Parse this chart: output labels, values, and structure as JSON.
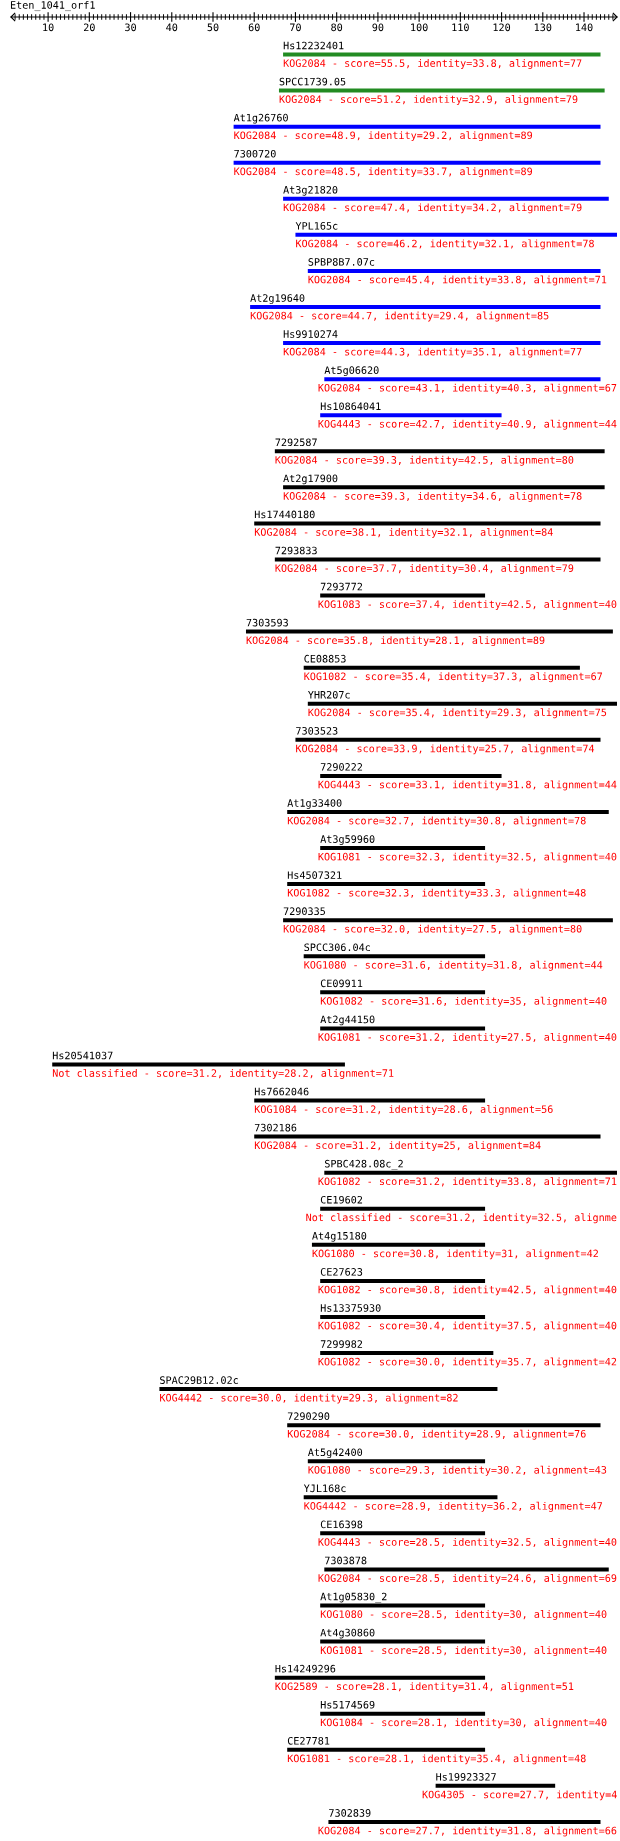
{
  "chart_data": {
    "type": "bar",
    "orientation": "horizontal",
    "title": "Eten_1041_orf1",
    "categories": [
      "Hs12232401",
      "SPCC1739.05",
      "At1g26760",
      "7300720",
      "At3g21820",
      "YPL165c",
      "SPBP8B7.07c",
      "At2g19640",
      "Hs9910274",
      "At5g06620",
      "Hs10864041",
      "7292587",
      "At2g17900",
      "Hs17440180",
      "7293833",
      "7293772",
      "7303593",
      "CE08853",
      "YHR207c",
      "7303523",
      "7290222",
      "At1g33400",
      "At3g59960",
      "Hs4507321",
      "7290335",
      "SPCC306.04c",
      "CE09911",
      "At2g44150",
      "Hs20541037",
      "Hs7662046",
      "7302186",
      "SPBC428.08c_2",
      "CE19602",
      "At4g15180",
      "CE27623",
      "Hs13375930",
      "7299982",
      "SPAC29B12.02c",
      "7290290",
      "At5g42400",
      "YJL168c",
      "CE16398",
      "7303878",
      "At1g05830_2",
      "At4g30860",
      "Hs14249296",
      "Hs5174569",
      "CE27781",
      "Hs19923327",
      "7302839"
    ],
    "base": [
      67,
      66,
      55,
      55,
      67,
      70,
      73,
      59,
      67,
      77,
      76,
      65,
      67,
      60,
      65,
      76,
      58,
      72,
      73,
      70,
      76,
      68,
      76,
      68,
      67,
      72,
      76,
      76,
      11,
      60,
      60,
      77,
      76,
      74,
      76,
      76,
      76,
      37,
      68,
      73,
      72,
      76,
      77,
      76,
      76,
      65,
      76,
      68,
      104,
      78
    ],
    "values": [
      77,
      79,
      89,
      89,
      79,
      78,
      71,
      85,
      77,
      67,
      44,
      80,
      78,
      84,
      79,
      40,
      89,
      67,
      75,
      74,
      44,
      78,
      40,
      48,
      80,
      44,
      40,
      40,
      71,
      56,
      84,
      71,
      40,
      42,
      40,
      40,
      42,
      82,
      76,
      43,
      47,
      40,
      69,
      40,
      40,
      51,
      40,
      48,
      29,
      66
    ],
    "colors": [
      "#228b22",
      "#228b22",
      "#0000ff",
      "#0000ff",
      "#0000ff",
      "#0000ff",
      "#0000ff",
      "#0000ff",
      "#0000ff",
      "#0000ff",
      "#0000ff",
      "#000000",
      "#000000",
      "#000000",
      "#000000",
      "#000000",
      "#000000",
      "#000000",
      "#000000",
      "#000000",
      "#000000",
      "#000000",
      "#000000",
      "#000000",
      "#000000",
      "#000000",
      "#000000",
      "#000000",
      "#000000",
      "#000000",
      "#000000",
      "#000000",
      "#000000",
      "#000000",
      "#000000",
      "#000000",
      "#000000",
      "#000000",
      "#000000",
      "#000000",
      "#000000",
      "#000000",
      "#000000",
      "#000000",
      "#000000",
      "#000000",
      "#000000",
      "#000000",
      "#000000",
      "#000000"
    ],
    "xlim": [
      1,
      148
    ],
    "xticks": [
      {
        "value": 2,
        "label": null
      },
      {
        "value": 3,
        "label": null
      },
      {
        "value": 4,
        "label": null
      },
      {
        "value": 5,
        "label": null
      },
      {
        "value": 6,
        "label": null
      },
      {
        "value": 7,
        "label": null
      },
      {
        "value": 8,
        "label": null
      },
      {
        "value": 9,
        "label": null
      },
      10,
      {
        "value": 11,
        "label": null
      },
      {
        "value": 12,
        "label": null
      },
      {
        "value": 13,
        "label": null
      },
      {
        "value": 14,
        "label": null
      },
      {
        "value": 15,
        "label": null
      },
      {
        "value": 16,
        "label": null
      },
      {
        "value": 17,
        "label": null
      },
      {
        "value": 18,
        "label": null
      },
      {
        "value": 19,
        "label": null
      },
      20,
      {
        "value": 21,
        "label": null
      },
      {
        "value": 22,
        "label": null
      },
      {
        "value": 23,
        "label": null
      },
      {
        "value": 24,
        "label": null
      },
      {
        "value": 25,
        "label": null
      },
      {
        "value": 26,
        "label": null
      },
      {
        "value": 27,
        "label": null
      },
      {
        "value": 28,
        "label": null
      },
      {
        "value": 29,
        "label": null
      },
      30,
      {
        "value": 31,
        "label": null
      },
      {
        "value": 32,
        "label": null
      },
      {
        "value": 33,
        "label": null
      },
      {
        "value": 34,
        "label": null
      },
      {
        "value": 35,
        "label": null
      },
      {
        "value": 36,
        "label": null
      },
      {
        "value": 37,
        "label": null
      },
      {
        "value": 38,
        "label": null
      },
      {
        "value": 39,
        "label": null
      },
      40,
      {
        "value": 41,
        "label": null
      },
      {
        "value": 42,
        "label": null
      },
      {
        "value": 43,
        "label": null
      },
      {
        "value": 44,
        "label": null
      },
      {
        "value": 45,
        "label": null
      },
      {
        "value": 46,
        "label": null
      },
      {
        "value": 47,
        "label": null
      },
      {
        "value": 48,
        "label": null
      },
      {
        "value": 49,
        "label": null
      },
      50,
      {
        "value": 51,
        "label": null
      },
      {
        "value": 52,
        "label": null
      },
      {
        "value": 53,
        "label": null
      },
      {
        "value": 54,
        "label": null
      },
      {
        "value": 55,
        "label": null
      },
      {
        "value": 56,
        "label": null
      },
      {
        "value": 57,
        "label": null
      },
      {
        "value": 58,
        "label": null
      },
      {
        "value": 59,
        "label": null
      },
      60,
      {
        "value": 61,
        "label": null
      },
      {
        "value": 62,
        "label": null
      },
      {
        "value": 63,
        "label": null
      },
      {
        "value": 64,
        "label": null
      },
      {
        "value": 65,
        "label": null
      },
      {
        "value": 66,
        "label": null
      },
      {
        "value": 67,
        "label": null
      },
      {
        "value": 68,
        "label": null
      },
      {
        "value": 69,
        "label": null
      },
      70,
      {
        "value": 71,
        "label": null
      },
      {
        "value": 72,
        "label": null
      },
      {
        "value": 73,
        "label": null
      },
      {
        "value": 74,
        "label": null
      },
      {
        "value": 75,
        "label": null
      },
      {
        "value": 76,
        "label": null
      },
      {
        "value": 77,
        "label": null
      },
      {
        "value": 78,
        "label": null
      },
      {
        "value": 79,
        "label": null
      },
      80,
      {
        "value": 81,
        "label": null
      },
      {
        "value": 82,
        "label": null
      },
      {
        "value": 83,
        "label": null
      },
      {
        "value": 84,
        "label": null
      },
      {
        "value": 85,
        "label": null
      },
      {
        "value": 86,
        "label": null
      },
      {
        "value": 87,
        "label": null
      },
      {
        "value": 88,
        "label": null
      },
      {
        "value": 89,
        "label": null
      },
      90,
      {
        "value": 91,
        "label": null
      },
      {
        "value": 92,
        "label": null
      },
      {
        "value": 93,
        "label": null
      },
      {
        "value": 94,
        "label": null
      },
      {
        "value": 95,
        "label": null
      },
      {
        "value": 96,
        "label": null
      },
      {
        "value": 97,
        "label": null
      },
      {
        "value": 98,
        "label": null
      },
      {
        "value": 99,
        "label": null
      },
      100,
      {
        "value": 101,
        "label": null
      },
      {
        "value": 102,
        "label": null
      },
      {
        "value": 103,
        "label": null
      },
      {
        "value": 104,
        "label": null
      },
      {
        "value": 105,
        "label": null
      },
      {
        "value": 106,
        "label": null
      },
      {
        "value": 107,
        "label": null
      },
      {
        "value": 108,
        "label": null
      },
      {
        "value": 109,
        "label": null
      },
      110,
      {
        "value": 111,
        "label": null
      },
      {
        "value": 112,
        "label": null
      },
      {
        "value": 113,
        "label": null
      },
      {
        "value": 114,
        "label": null
      },
      {
        "value": 115,
        "label": null
      },
      {
        "value": 116,
        "label": null
      },
      {
        "value": 117,
        "label": null
      },
      {
        "value": 118,
        "label": null
      },
      {
        "value": 119,
        "label": null
      },
      120,
      {
        "value": 121,
        "label": null
      },
      {
        "value": 122,
        "label": null
      },
      {
        "value": 123,
        "label": null
      },
      {
        "value": 124,
        "label": null
      },
      {
        "value": 125,
        "label": null
      },
      {
        "value": 126,
        "label": null
      },
      {
        "value": 127,
        "label": null
      },
      {
        "value": 128,
        "label": null
      },
      {
        "value": 129,
        "label": null
      },
      130,
      {
        "value": 131,
        "label": null
      },
      {
        "value": 132,
        "label": null
      },
      {
        "value": 133,
        "label": null
      },
      {
        "value": 134,
        "label": null
      },
      {
        "value": 135,
        "label": null
      },
      {
        "value": 136,
        "label": null
      },
      {
        "value": 137,
        "label": null
      },
      {
        "value": 138,
        "label": null
      },
      {
        "value": 139,
        "label": null
      },
      140,
      {
        "value": 141,
        "label": null
      },
      {
        "value": 142,
        "label": null
      },
      {
        "value": 143,
        "label": null
      },
      {
        "value": 144,
        "label": null
      },
      {
        "value": 145,
        "label": null
      },
      {
        "value": 146,
        "label": null
      },
      {
        "value": 147,
        "label": null
      }
    ],
    "annotations": [
      "KOG2084 - score=55.5, identity=33.8, alignment=77",
      "KOG2084 - score=51.2, identity=32.9, alignment=79",
      "KOG2084 - score=48.9, identity=29.2, alignment=89",
      "KOG2084 - score=48.5, identity=33.7, alignment=89",
      "KOG2084 - score=47.4, identity=34.2, alignment=79",
      "KOG2084 - score=46.2, identity=32.1, alignment=78",
      "KOG2084 - score=45.4, identity=33.8, alignment=71",
      "KOG2084 - score=44.7, identity=29.4, alignment=85",
      "KOG2084 - score=44.3, identity=35.1, alignment=77",
      "KOG2084 - score=43.1, identity=40.3, alignment=67",
      "KOG4443 - score=42.7, identity=40.9, alignment=44",
      "KOG2084 - score=39.3, identity=42.5, alignment=80",
      "KOG2084 - score=39.3, identity=34.6, alignment=78",
      "KOG2084 - score=38.1, identity=32.1, alignment=84",
      "KOG2084 - score=37.7, identity=30.4, alignment=79",
      "KOG1083 - score=37.4, identity=42.5, alignment=40",
      "KOG2084 - score=35.8, identity=28.1, alignment=89",
      "KOG1082 - score=35.4, identity=37.3, alignment=67",
      "KOG2084 - score=35.4, identity=29.3, alignment=75",
      "KOG2084 - score=33.9, identity=25.7, alignment=74",
      "KOG4443 - score=33.1, identity=31.8, alignment=44",
      "KOG2084 - score=32.7, identity=30.8, alignment=78",
      "KOG1081 - score=32.3, identity=32.5, alignment=40",
      "KOG1082 - score=32.3, identity=33.3, alignment=48",
      "KOG2084 - score=32.0, identity=27.5, alignment=80",
      "KOG1080 - score=31.6, identity=31.8, alignment=44",
      "KOG1082 - score=31.6, identity=35, alignment=40",
      "KOG1081 - score=31.2, identity=27.5, alignment=40",
      "Not classified - score=31.2, identity=28.2, alignment=71",
      "KOG1084 - score=31.2, identity=28.6, alignment=56",
      "KOG2084 - score=31.2, identity=25, alignment=84",
      "KOG1082 - score=31.2, identity=33.8, alignment=71",
      "Not classified - score=31.2, identity=32.5, alignme",
      "KOG1080 - score=30.8, identity=31, alignment=42",
      "KOG1082 - score=30.8, identity=42.5, alignment=40",
      "KOG1082 - score=30.4, identity=37.5, alignment=40",
      "KOG1082 - score=30.0, identity=35.7, alignment=42",
      "KOG4442 - score=30.0, identity=29.3, alignment=82",
      "KOG2084 - score=30.0, identity=28.9, alignment=76",
      "KOG1080 - score=29.3, identity=30.2, alignment=43",
      "KOG4442 - score=28.9, identity=36.2, alignment=47",
      "KOG4443 - score=28.5, identity=32.5, alignment=40",
      "KOG2084 - score=28.5, identity=24.6, alignment=69",
      "KOG1080 - score=28.5, identity=30, alignment=40",
      "KOG1081 - score=28.5, identity=30, alignment=40",
      "KOG2589 - score=28.1, identity=31.4, alignment=51",
      "KOG1084 - score=28.1, identity=30, alignment=40",
      "KOG1081 - score=28.1, identity=35.4, alignment=48",
      "KOG4305 - score=27.7, identity=4",
      "KOG2084 - score=27.7, identity=31.8, alignment=66"
    ]
  }
}
